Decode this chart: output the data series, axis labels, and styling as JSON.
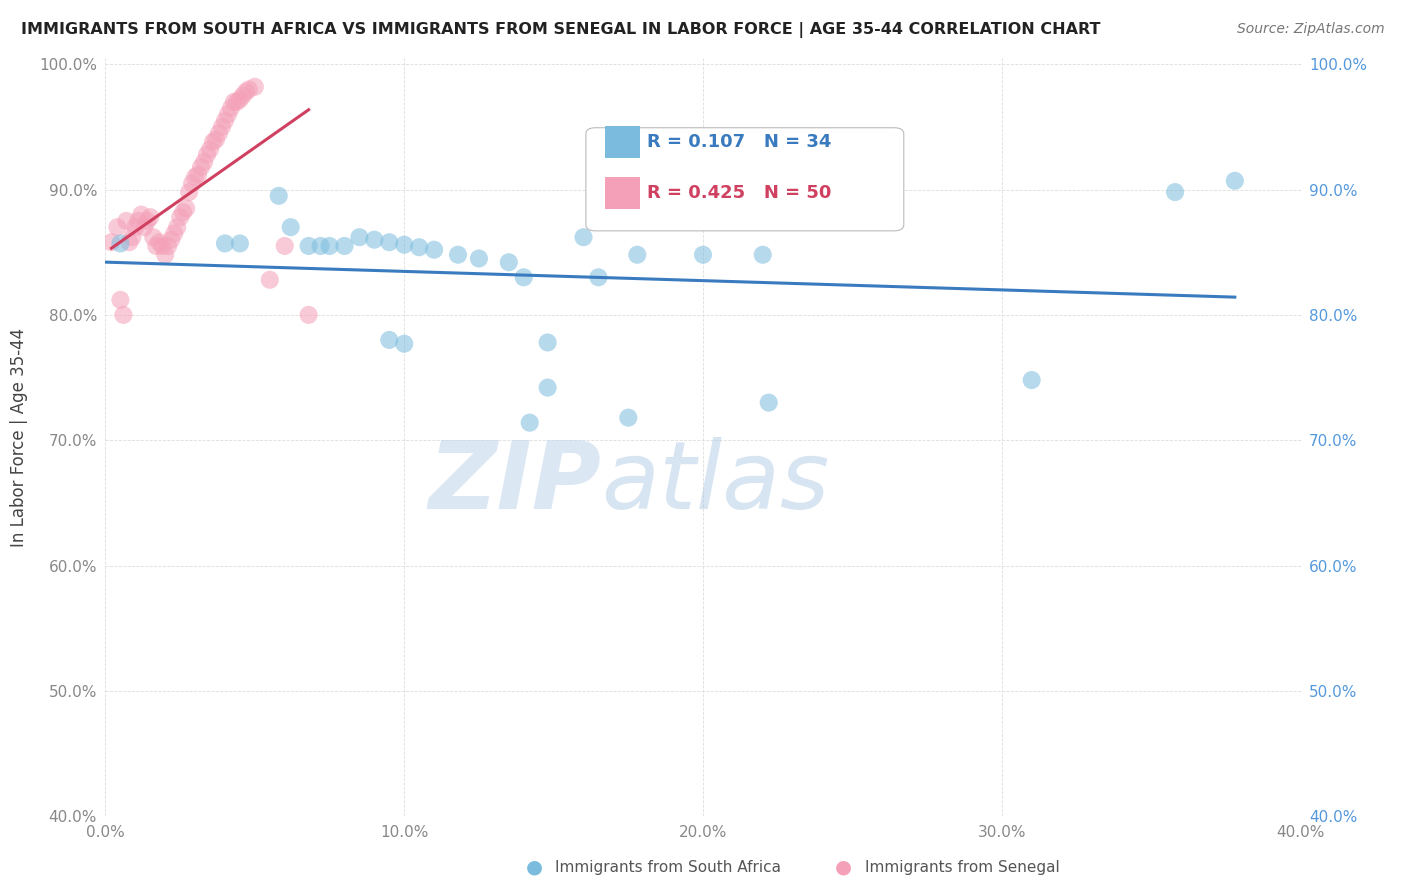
{
  "title": "IMMIGRANTS FROM SOUTH AFRICA VS IMMIGRANTS FROM SENEGAL IN LABOR FORCE | AGE 35-44 CORRELATION CHART",
  "source": "Source: ZipAtlas.com",
  "ylabel": "In Labor Force | Age 35-44",
  "xlim": [
    0.0,
    0.4
  ],
  "ylim": [
    0.4,
    1.005
  ],
  "xticks": [
    0.0,
    0.1,
    0.2,
    0.3,
    0.4
  ],
  "yticks": [
    0.4,
    0.5,
    0.6,
    0.7,
    0.8,
    0.9,
    1.0
  ],
  "ytick_labels": [
    "40.0%",
    "50.0%",
    "60.0%",
    "70.0%",
    "80.0%",
    "90.0%",
    "100.0%"
  ],
  "xtick_labels": [
    "0.0%",
    "10.0%",
    "20.0%",
    "30.0%",
    "40.0%"
  ],
  "legend_blue_label": "Immigrants from South Africa",
  "legend_pink_label": "Immigrants from Senegal",
  "legend_blue_r": "R = 0.107",
  "legend_blue_n": "N = 34",
  "legend_pink_r": "R = 0.425",
  "legend_pink_n": "N = 50",
  "blue_color": "#7bbcde",
  "pink_color": "#f4a0b8",
  "blue_line_color": "#3a7bbf",
  "pink_line_color": "#d04060",
  "watermark_zip": "ZIP",
  "watermark_atlas": "atlas",
  "blue_x": [
    0.005,
    0.04,
    0.045,
    0.058,
    0.062,
    0.068,
    0.072,
    0.075,
    0.08,
    0.085,
    0.09,
    0.095,
    0.1,
    0.105,
    0.11,
    0.118,
    0.125,
    0.135,
    0.148,
    0.16,
    0.178,
    0.2,
    0.22,
    0.14,
    0.165,
    0.148,
    0.142,
    0.095,
    0.1,
    0.175,
    0.222,
    0.31,
    0.358,
    0.378
  ],
  "blue_y": [
    0.857,
    0.857,
    0.857,
    0.895,
    0.87,
    0.855,
    0.855,
    0.855,
    0.855,
    0.862,
    0.86,
    0.858,
    0.856,
    0.854,
    0.852,
    0.848,
    0.845,
    0.842,
    0.742,
    0.862,
    0.848,
    0.848,
    0.848,
    0.83,
    0.83,
    0.778,
    0.714,
    0.78,
    0.777,
    0.718,
    0.73,
    0.748,
    0.898,
    0.907
  ],
  "pink_x": [
    0.002,
    0.004,
    0.005,
    0.006,
    0.007,
    0.008,
    0.009,
    0.01,
    0.011,
    0.012,
    0.013,
    0.014,
    0.015,
    0.016,
    0.017,
    0.018,
    0.019,
    0.02,
    0.021,
    0.022,
    0.023,
    0.024,
    0.025,
    0.026,
    0.027,
    0.028,
    0.029,
    0.03,
    0.031,
    0.032,
    0.033,
    0.034,
    0.035,
    0.036,
    0.037,
    0.038,
    0.039,
    0.04,
    0.041,
    0.042,
    0.043,
    0.044,
    0.045,
    0.046,
    0.047,
    0.048,
    0.05,
    0.055,
    0.06,
    0.068
  ],
  "pink_y": [
    0.858,
    0.87,
    0.812,
    0.8,
    0.875,
    0.858,
    0.862,
    0.87,
    0.875,
    0.88,
    0.87,
    0.875,
    0.878,
    0.862,
    0.855,
    0.858,
    0.855,
    0.848,
    0.855,
    0.86,
    0.865,
    0.87,
    0.878,
    0.882,
    0.885,
    0.898,
    0.905,
    0.91,
    0.912,
    0.918,
    0.922,
    0.928,
    0.932,
    0.938,
    0.94,
    0.945,
    0.95,
    0.955,
    0.96,
    0.965,
    0.97,
    0.97,
    0.972,
    0.975,
    0.978,
    0.98,
    0.982,
    0.828,
    0.855,
    0.8
  ]
}
